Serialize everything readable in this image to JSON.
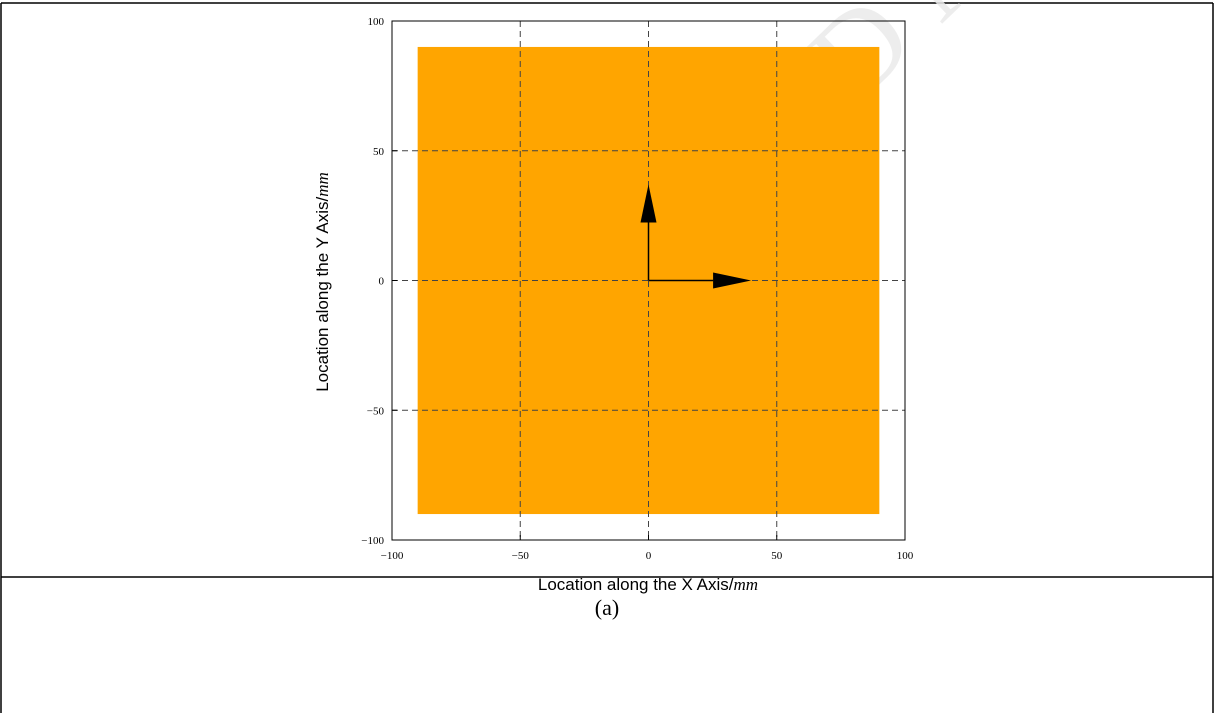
{
  "chart_data": {
    "type": "area",
    "xlabel": "Location along the X Axis/mm",
    "ylabel": "Location along the Y Axis/mm",
    "xlim": [
      -100,
      100
    ],
    "ylim": [
      -100,
      100
    ],
    "xticks": [
      -100,
      -50,
      0,
      50,
      100
    ],
    "yticks": [
      -100,
      -50,
      0,
      50,
      100
    ],
    "xtick_labels": [
      "−100",
      "−50",
      "0",
      "50",
      "100"
    ],
    "ytick_labels": [
      "−100",
      "−50",
      "0",
      "50",
      "100"
    ],
    "grid": true,
    "region": {
      "x": [
        -90,
        90
      ],
      "y": [
        -90,
        90
      ],
      "color": "#FFA500"
    },
    "arrows": [
      {
        "from": [
          0,
          0
        ],
        "to": [
          40,
          0
        ]
      },
      {
        "from": [
          0,
          0
        ],
        "to": [
          0,
          37
        ]
      }
    ]
  },
  "caption": "(a)",
  "watermark": "ACCEPTED MANUSCRIPT",
  "colors": {
    "fill": "#FFA500",
    "grid": "#444444",
    "axis": "#000000",
    "watermark": "#e8e8e8"
  }
}
